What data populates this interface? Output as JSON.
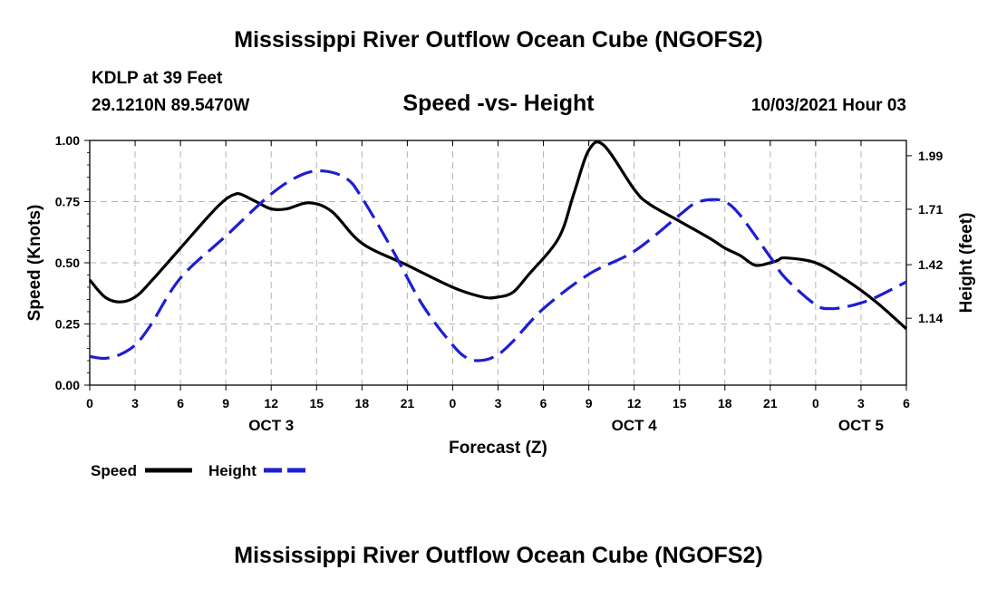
{
  "header": {
    "title": "Mississippi River Outflow Ocean Cube (NGOFS2)",
    "station": "KDLP at 39 Feet",
    "location": "29.1210N  89.5470W",
    "date": "10/03/2021 Hour 03"
  },
  "footer": {
    "title": "Mississippi River Outflow Ocean Cube (NGOFS2)"
  },
  "chart_data": {
    "type": "line",
    "title": "Speed -vs- Height",
    "xlabel": "Forecast (Z)",
    "ylabel": "Speed (Knots)",
    "y2label": "Height (feet)",
    "x_range": [
      0,
      54
    ],
    "x_unit": "hours from 10/03/2021 00Z",
    "x_ticks": [
      0,
      3,
      6,
      9,
      12,
      15,
      18,
      21,
      24,
      27,
      30,
      33,
      36,
      39,
      42,
      45,
      48,
      51,
      54
    ],
    "x_tick_labels": [
      "0",
      "3",
      "6",
      "9",
      "12",
      "15",
      "18",
      "21",
      "0",
      "3",
      "6",
      "9",
      "12",
      "15",
      "18",
      "21",
      "0",
      "3",
      "6"
    ],
    "day_labels": [
      {
        "x": 12,
        "label": "OCT 3"
      },
      {
        "x": 36,
        "label": "OCT 4"
      },
      {
        "x": 51,
        "label": "OCT 5"
      }
    ],
    "ylim": [
      0,
      1
    ],
    "y_ticks": [
      0,
      0.25,
      0.5,
      0.75,
      1.0
    ],
    "y_tick_labels": [
      "0.00",
      "0.25",
      "0.50",
      "0.75",
      "1.00"
    ],
    "y2lim": [
      0.79,
      2.07
    ],
    "y2_ticks": [
      1.14,
      1.42,
      1.71,
      1.99
    ],
    "y2_tick_labels": [
      "1.14",
      "1.42",
      "1.71",
      "1.99"
    ],
    "grid": true,
    "legend_position": "bottom-left",
    "series": [
      {
        "name": "Speed",
        "axis": "left",
        "color": "#000000",
        "dash": "solid",
        "x": [
          0,
          1,
          2,
          3,
          4,
          6,
          8,
          9,
          9.6,
          10,
          11,
          12,
          13,
          14.5,
          16,
          18,
          21,
          24,
          26,
          27,
          28,
          29,
          31,
          32,
          33,
          34,
          36,
          37,
          39,
          41,
          42,
          43,
          44,
          45,
          45.5,
          46,
          48,
          50,
          52,
          54
        ],
        "y": [
          0.43,
          0.36,
          0.34,
          0.36,
          0.42,
          0.56,
          0.7,
          0.76,
          0.78,
          0.78,
          0.75,
          0.72,
          0.72,
          0.745,
          0.71,
          0.58,
          0.49,
          0.4,
          0.36,
          0.36,
          0.38,
          0.45,
          0.6,
          0.78,
          0.96,
          0.98,
          0.8,
          0.74,
          0.67,
          0.6,
          0.56,
          0.53,
          0.49,
          0.5,
          0.51,
          0.52,
          0.5,
          0.43,
          0.34,
          0.23
        ]
      },
      {
        "name": "Height",
        "axis": "right",
        "color": "#1e1ed2",
        "dash": "dashed",
        "x": [
          0,
          1,
          2,
          3,
          4,
          6,
          9,
          12,
          14,
          15.5,
          17,
          18,
          20,
          22,
          24,
          25,
          26,
          27,
          28,
          30,
          33,
          36,
          39,
          40,
          41,
          42,
          43,
          45,
          46,
          48,
          49,
          50,
          51,
          52,
          54
        ],
        "y": [
          0.94,
          0.93,
          0.95,
          1.0,
          1.1,
          1.35,
          1.57,
          1.79,
          1.89,
          1.91,
          1.87,
          1.77,
          1.5,
          1.21,
          1.0,
          0.93,
          0.92,
          0.95,
          1.02,
          1.19,
          1.37,
          1.49,
          1.68,
          1.74,
          1.76,
          1.75,
          1.68,
          1.46,
          1.35,
          1.21,
          1.19,
          1.2,
          1.22,
          1.25,
          1.33
        ]
      }
    ]
  }
}
